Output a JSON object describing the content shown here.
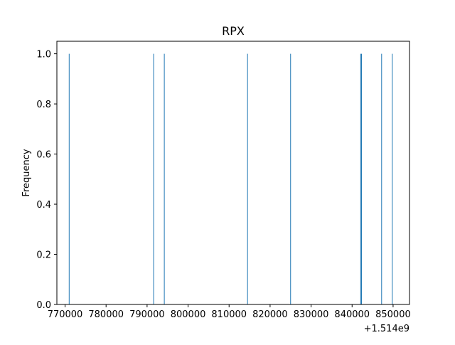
{
  "chart_data": {
    "type": "bar",
    "title": "RPX",
    "xlabel": "",
    "ylabel": "Frequency",
    "x_offset_label": "+1.514e9",
    "xlim": [
      768000,
      854000
    ],
    "ylim": [
      0,
      1.05
    ],
    "x_ticks": [
      770000,
      780000,
      790000,
      800000,
      810000,
      820000,
      830000,
      840000,
      850000
    ],
    "x_tick_labels": [
      "770000",
      "780000",
      "790000",
      "800000",
      "810000",
      "820000",
      "830000",
      "840000",
      "850000"
    ],
    "y_ticks": [
      0.0,
      0.2,
      0.4,
      0.6,
      0.8,
      1.0
    ],
    "y_tick_labels": [
      "0.0",
      "0.2",
      "0.4",
      "0.6",
      "0.8",
      "1.0"
    ],
    "grid": false,
    "bar_color": "#1f77b4",
    "bars": [
      {
        "x": 771000,
        "value": 1
      },
      {
        "x": 791600,
        "value": 1
      },
      {
        "x": 794200,
        "value": 1
      },
      {
        "x": 814500,
        "value": 1
      },
      {
        "x": 825000,
        "value": 1
      },
      {
        "x": 842100,
        "value": 1
      },
      {
        "x": 842300,
        "value": 1
      },
      {
        "x": 847200,
        "value": 1
      },
      {
        "x": 849800,
        "value": 1
      }
    ]
  }
}
